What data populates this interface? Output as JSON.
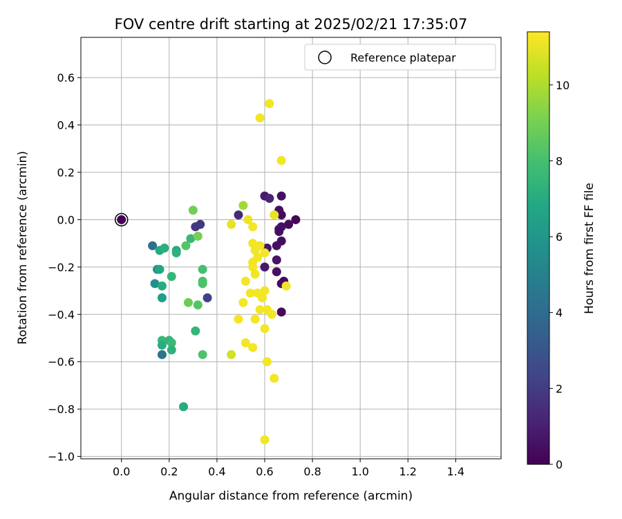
{
  "chart_data": {
    "type": "scatter",
    "title": "FOV centre drift starting at 2025/02/21 17:35:07",
    "xlabel": "Angular distance from reference (arcmin)",
    "ylabel": "Rotation from reference (arcmin)",
    "xlim": [
      -0.17,
      1.59
    ],
    "ylim": [
      -1.01,
      0.77
    ],
    "xticks": [
      0.0,
      0.2,
      0.4,
      0.6,
      0.8,
      1.0,
      1.2,
      1.4
    ],
    "xtick_labels": [
      "0.0",
      "0.2",
      "0.4",
      "0.6",
      "0.8",
      "1.0",
      "1.2",
      "1.4"
    ],
    "yticks": [
      0.6,
      0.4,
      0.2,
      0.0,
      -0.2,
      -0.4,
      -0.6,
      -0.8,
      -1.0
    ],
    "ytick_labels": [
      "0.6",
      "0.4",
      "0.2",
      "0.0",
      "−0.2",
      "−0.4",
      "−0.6",
      "−0.8",
      "−1.0"
    ],
    "grid": true,
    "legend": {
      "placement": "top-right",
      "entries": [
        "Reference platepar"
      ]
    },
    "colorbar": {
      "label": "Hours from first FF file",
      "colormap": "viridis",
      "range": [
        0,
        11.4
      ],
      "ticks": [
        0,
        2,
        4,
        6,
        8,
        10
      ],
      "tick_labels": [
        "0",
        "2",
        "4",
        "6",
        "8",
        "10"
      ]
    },
    "reference_point": {
      "x": 0.0,
      "y": 0.0,
      "hours": 0
    },
    "points": [
      {
        "x": 0.6,
        "y": 0.1,
        "h": 0.8
      },
      {
        "x": 0.62,
        "y": 0.09,
        "h": 1.2
      },
      {
        "x": 0.67,
        "y": 0.1,
        "h": 0.5
      },
      {
        "x": 0.66,
        "y": 0.04,
        "h": 0.4
      },
      {
        "x": 0.67,
        "y": 0.02,
        "h": 0.3
      },
      {
        "x": 0.73,
        "y": 0.0,
        "h": 0.2
      },
      {
        "x": 0.7,
        "y": -0.02,
        "h": 0.3
      },
      {
        "x": 0.67,
        "y": -0.03,
        "h": 0.5
      },
      {
        "x": 0.66,
        "y": -0.04,
        "h": 0.6
      },
      {
        "x": 0.66,
        "y": -0.05,
        "h": 0.4
      },
      {
        "x": 0.61,
        "y": -0.12,
        "h": 0.7
      },
      {
        "x": 0.67,
        "y": -0.09,
        "h": 0.4
      },
      {
        "x": 0.65,
        "y": -0.11,
        "h": 0.5
      },
      {
        "x": 0.65,
        "y": -0.17,
        "h": 0.6
      },
      {
        "x": 0.6,
        "y": -0.2,
        "h": 0.8
      },
      {
        "x": 0.65,
        "y": -0.22,
        "h": 0.5
      },
      {
        "x": 0.68,
        "y": -0.26,
        "h": 0.3
      },
      {
        "x": 0.67,
        "y": -0.27,
        "h": 0.4
      },
      {
        "x": 0.67,
        "y": -0.39,
        "h": 0.3
      },
      {
        "x": 0.49,
        "y": 0.02,
        "h": 1.4
      },
      {
        "x": 0.36,
        "y": -0.33,
        "h": 2.2
      },
      {
        "x": 0.33,
        "y": -0.02,
        "h": 1.8
      },
      {
        "x": 0.31,
        "y": -0.03,
        "h": 1.9
      },
      {
        "x": 0.13,
        "y": -0.11,
        "h": 4.2
      },
      {
        "x": 0.17,
        "y": -0.57,
        "h": 4.4
      },
      {
        "x": 0.14,
        "y": -0.27,
        "h": 5.6
      },
      {
        "x": 0.15,
        "y": -0.21,
        "h": 5.8
      },
      {
        "x": 0.17,
        "y": -0.33,
        "h": 6.4
      },
      {
        "x": 0.16,
        "y": -0.21,
        "h": 6.8
      },
      {
        "x": 0.17,
        "y": -0.28,
        "h": 7.0
      },
      {
        "x": 0.16,
        "y": -0.13,
        "h": 7.0
      },
      {
        "x": 0.18,
        "y": -0.12,
        "h": 7.2
      },
      {
        "x": 0.23,
        "y": -0.13,
        "h": 6.9
      },
      {
        "x": 0.23,
        "y": -0.14,
        "h": 7.3
      },
      {
        "x": 0.21,
        "y": -0.24,
        "h": 7.5
      },
      {
        "x": 0.29,
        "y": -0.08,
        "h": 7.6
      },
      {
        "x": 0.27,
        "y": -0.11,
        "h": 8.3
      },
      {
        "x": 0.17,
        "y": -0.51,
        "h": 7.6
      },
      {
        "x": 0.17,
        "y": -0.53,
        "h": 7.1
      },
      {
        "x": 0.2,
        "y": -0.51,
        "h": 7.4
      },
      {
        "x": 0.21,
        "y": -0.52,
        "h": 7.7
      },
      {
        "x": 0.21,
        "y": -0.55,
        "h": 7.3
      },
      {
        "x": 0.26,
        "y": -0.79,
        "h": 7.0
      },
      {
        "x": 0.31,
        "y": -0.47,
        "h": 7.5
      },
      {
        "x": 0.34,
        "y": -0.21,
        "h": 8.0
      },
      {
        "x": 0.34,
        "y": -0.26,
        "h": 8.1
      },
      {
        "x": 0.34,
        "y": -0.27,
        "h": 8.2
      },
      {
        "x": 0.34,
        "y": -0.57,
        "h": 8.2
      },
      {
        "x": 0.32,
        "y": -0.36,
        "h": 8.3
      },
      {
        "x": 0.28,
        "y": -0.35,
        "h": 8.8
      },
      {
        "x": 0.32,
        "y": -0.07,
        "h": 9.0
      },
      {
        "x": 0.3,
        "y": 0.04,
        "h": 8.9
      },
      {
        "x": 0.51,
        "y": 0.06,
        "h": 9.8
      },
      {
        "x": 0.62,
        "y": 0.49,
        "h": 11.2
      },
      {
        "x": 0.58,
        "y": 0.43,
        "h": 11.2
      },
      {
        "x": 0.67,
        "y": 0.25,
        "h": 11.2
      },
      {
        "x": 0.64,
        "y": 0.02,
        "h": 11.0
      },
      {
        "x": 0.46,
        "y": -0.02,
        "h": 11.0
      },
      {
        "x": 0.53,
        "y": 0.0,
        "h": 11.1
      },
      {
        "x": 0.55,
        "y": -0.03,
        "h": 11.2
      },
      {
        "x": 0.55,
        "y": -0.1,
        "h": 11.2
      },
      {
        "x": 0.58,
        "y": -0.11,
        "h": 11.2
      },
      {
        "x": 0.56,
        "y": -0.13,
        "h": 11.2
      },
      {
        "x": 0.6,
        "y": -0.14,
        "h": 11.2
      },
      {
        "x": 0.57,
        "y": -0.16,
        "h": 11.2
      },
      {
        "x": 0.55,
        "y": -0.18,
        "h": 11.2
      },
      {
        "x": 0.55,
        "y": -0.2,
        "h": 11.2
      },
      {
        "x": 0.56,
        "y": -0.23,
        "h": 11.2
      },
      {
        "x": 0.52,
        "y": -0.26,
        "h": 11.2
      },
      {
        "x": 0.54,
        "y": -0.31,
        "h": 11.2
      },
      {
        "x": 0.57,
        "y": -0.31,
        "h": 11.2
      },
      {
        "x": 0.59,
        "y": -0.33,
        "h": 11.2
      },
      {
        "x": 0.6,
        "y": -0.3,
        "h": 11.2
      },
      {
        "x": 0.51,
        "y": -0.35,
        "h": 11.2
      },
      {
        "x": 0.58,
        "y": -0.38,
        "h": 11.2
      },
      {
        "x": 0.61,
        "y": -0.38,
        "h": 11.2
      },
      {
        "x": 0.63,
        "y": -0.4,
        "h": 11.2
      },
      {
        "x": 0.49,
        "y": -0.42,
        "h": 11.2
      },
      {
        "x": 0.56,
        "y": -0.42,
        "h": 11.2
      },
      {
        "x": 0.6,
        "y": -0.46,
        "h": 11.2
      },
      {
        "x": 0.52,
        "y": -0.52,
        "h": 11.2
      },
      {
        "x": 0.55,
        "y": -0.54,
        "h": 11.2
      },
      {
        "x": 0.46,
        "y": -0.57,
        "h": 10.6
      },
      {
        "x": 0.61,
        "y": -0.6,
        "h": 11.2
      },
      {
        "x": 0.64,
        "y": -0.67,
        "h": 11.2
      },
      {
        "x": 0.6,
        "y": -0.93,
        "h": 11.2
      },
      {
        "x": 0.69,
        "y": -0.28,
        "h": 11.2
      }
    ]
  }
}
